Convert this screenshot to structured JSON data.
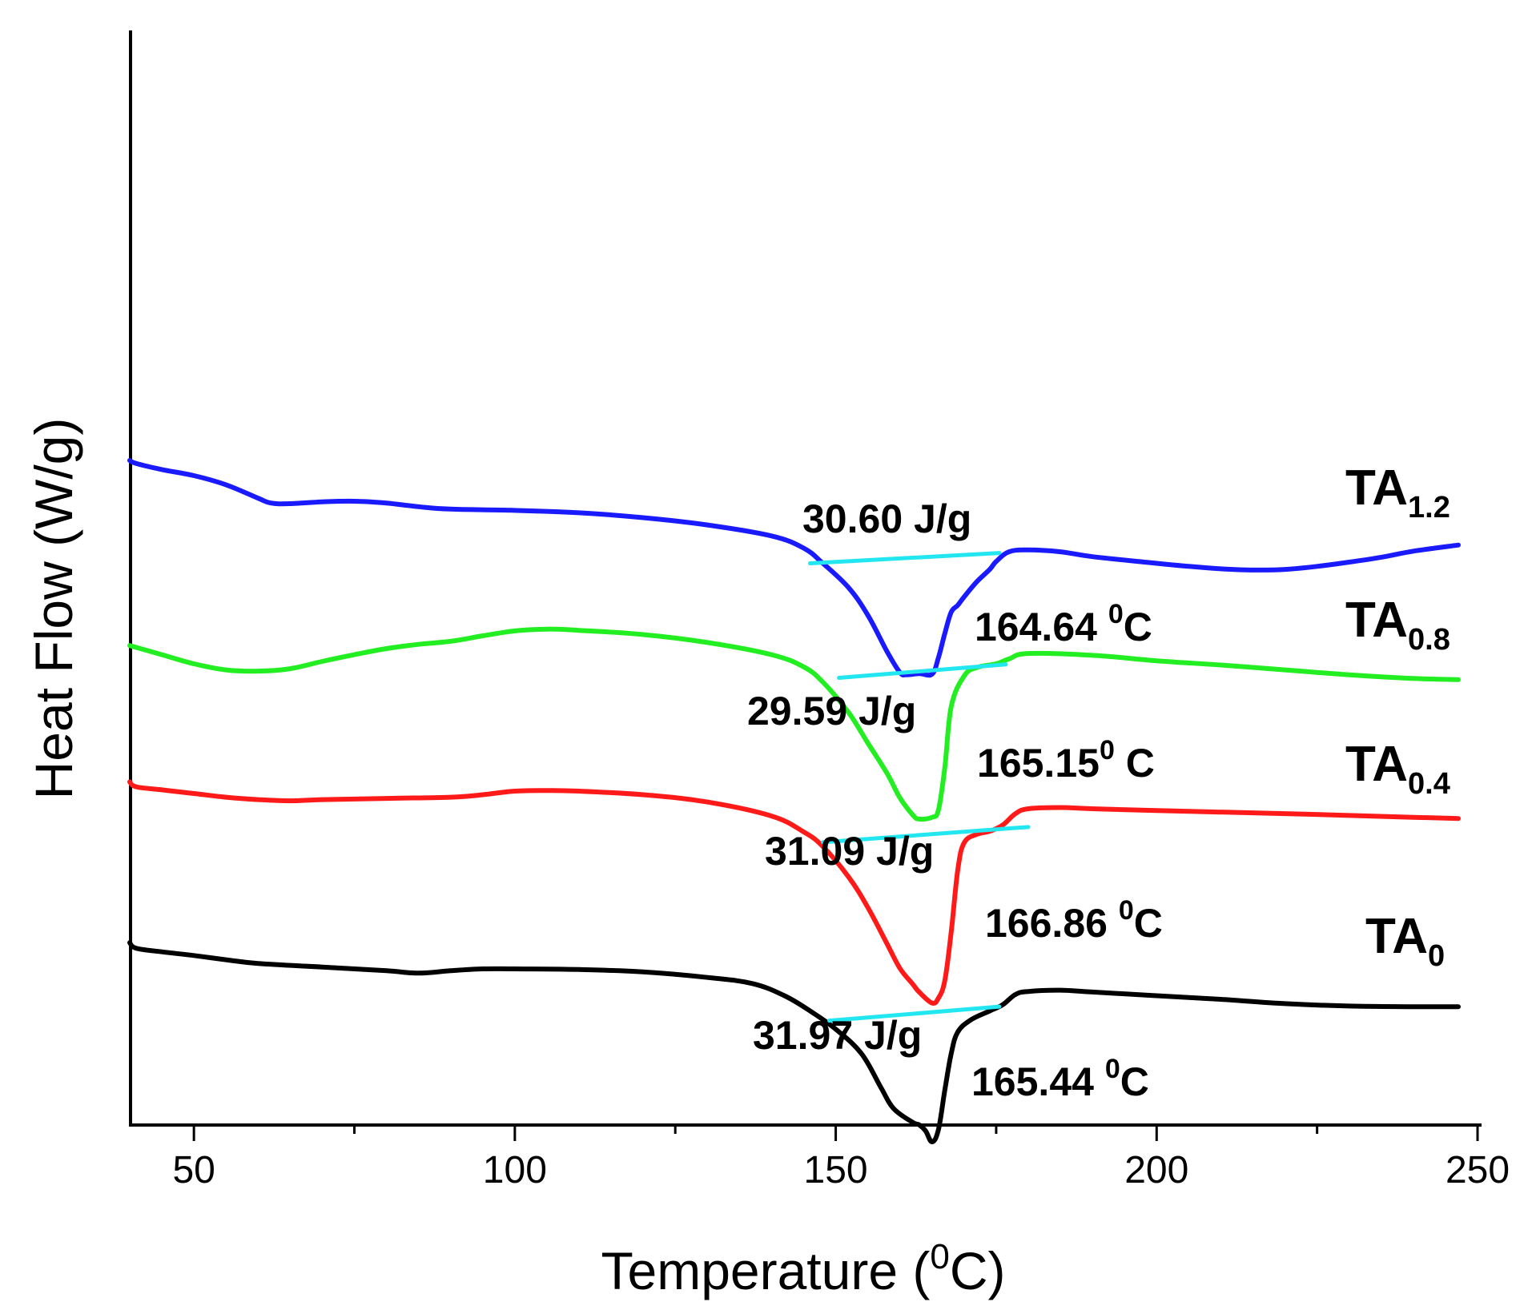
{
  "chart_data": {
    "type": "line",
    "title": "",
    "xlabel": "Temperature (0C)",
    "xlabel_parts": {
      "pre": "Temperature (",
      "sup": "0",
      "post": "C)"
    },
    "ylabel": "Heat Flow (W/g)",
    "xlim": [
      40,
      250
    ],
    "x_ticks": [
      50,
      100,
      150,
      200,
      250
    ],
    "x_tick_labels": [
      "50",
      "100",
      "150",
      "200",
      "250"
    ],
    "x_minor_ticks": [
      75,
      125,
      175,
      225
    ],
    "y_ticks_shown": false,
    "grid": false,
    "series": [
      {
        "name": "TA1.2",
        "label_main": "TA",
        "label_sub": "1.2",
        "color": "#1a1aff",
        "points": [
          [
            40,
            -7.6
          ],
          [
            41,
            -8.1
          ],
          [
            45,
            -9.1
          ],
          [
            50,
            -10.1
          ],
          [
            55,
            -11.6
          ],
          [
            60,
            -13.8
          ],
          [
            62,
            -14.6
          ],
          [
            65,
            -14.7
          ],
          [
            70,
            -14.4
          ],
          [
            75,
            -14.3
          ],
          [
            80,
            -14.6
          ],
          [
            85,
            -15.2
          ],
          [
            90,
            -15.6
          ],
          [
            100,
            -15.8
          ],
          [
            110,
            -16.2
          ],
          [
            120,
            -17.0
          ],
          [
            130,
            -18.2
          ],
          [
            140,
            -20.0
          ],
          [
            145,
            -22.0
          ],
          [
            148,
            -24.5
          ],
          [
            152,
            -28.5
          ],
          [
            155,
            -33.0
          ],
          [
            158,
            -39.0
          ],
          [
            160,
            -42.4
          ],
          [
            161,
            -42.8
          ],
          [
            163,
            -42.6
          ],
          [
            165,
            -42.7
          ],
          [
            166,
            -40.0
          ],
          [
            167,
            -36.0
          ],
          [
            168,
            -32.5
          ],
          [
            169,
            -31.4
          ],
          [
            170,
            -30.0
          ],
          [
            172,
            -27.5
          ],
          [
            174,
            -25.5
          ],
          [
            175,
            -24.2
          ],
          [
            177,
            -22.6
          ],
          [
            180,
            -22.3
          ],
          [
            185,
            -22.6
          ],
          [
            190,
            -23.4
          ],
          [
            200,
            -24.5
          ],
          [
            205,
            -25.0
          ],
          [
            210,
            -25.4
          ],
          [
            215,
            -25.6
          ],
          [
            220,
            -25.5
          ],
          [
            225,
            -25.0
          ],
          [
            230,
            -24.3
          ],
          [
            235,
            -23.5
          ],
          [
            240,
            -22.5
          ],
          [
            247,
            -21.5
          ]
        ]
      },
      {
        "name": "TA0.8",
        "label_main": "TA",
        "label_sub": "0.8",
        "color": "#22ee22",
        "points": [
          [
            40,
            -38.0
          ],
          [
            45,
            -39.5
          ],
          [
            50,
            -41.0
          ],
          [
            55,
            -42.0
          ],
          [
            60,
            -42.2
          ],
          [
            65,
            -41.8
          ],
          [
            70,
            -40.6
          ],
          [
            75,
            -39.5
          ],
          [
            80,
            -38.5
          ],
          [
            85,
            -37.8
          ],
          [
            90,
            -37.3
          ],
          [
            95,
            -36.4
          ],
          [
            100,
            -35.6
          ],
          [
            105,
            -35.3
          ],
          [
            110,
            -35.5
          ],
          [
            120,
            -36.2
          ],
          [
            130,
            -37.5
          ],
          [
            140,
            -39.5
          ],
          [
            145,
            -41.5
          ],
          [
            148,
            -44.0
          ],
          [
            152,
            -49.0
          ],
          [
            155,
            -54.0
          ],
          [
            158,
            -59.0
          ],
          [
            160,
            -63.0
          ],
          [
            162,
            -65.8
          ],
          [
            163,
            -66.5
          ],
          [
            165,
            -66.2
          ],
          [
            166,
            -65.0
          ],
          [
            167,
            -58.0
          ],
          [
            168,
            -48.0
          ],
          [
            170,
            -43.0
          ],
          [
            172,
            -41.6
          ],
          [
            175,
            -41.0
          ],
          [
            177,
            -40.2
          ],
          [
            180,
            -39.3
          ],
          [
            190,
            -39.6
          ],
          [
            200,
            -40.5
          ],
          [
            210,
            -41.2
          ],
          [
            220,
            -42.0
          ],
          [
            230,
            -42.8
          ],
          [
            240,
            -43.4
          ],
          [
            247,
            -43.6
          ]
        ]
      },
      {
        "name": "TA0.4",
        "label_main": "TA",
        "label_sub": "0.4",
        "color": "#ff1a1a",
        "points": [
          [
            40,
            -60.4
          ],
          [
            41,
            -61.2
          ],
          [
            45,
            -61.7
          ],
          [
            50,
            -62.3
          ],
          [
            55,
            -62.9
          ],
          [
            60,
            -63.3
          ],
          [
            65,
            -63.5
          ],
          [
            70,
            -63.3
          ],
          [
            80,
            -63.1
          ],
          [
            90,
            -62.9
          ],
          [
            95,
            -62.5
          ],
          [
            100,
            -61.9
          ],
          [
            105,
            -61.8
          ],
          [
            110,
            -61.9
          ],
          [
            120,
            -62.5
          ],
          [
            130,
            -63.7
          ],
          [
            140,
            -66.0
          ],
          [
            145,
            -68.6
          ],
          [
            148,
            -71.0
          ],
          [
            152,
            -76.0
          ],
          [
            155,
            -81.0
          ],
          [
            158,
            -87.0
          ],
          [
            160,
            -91.0
          ],
          [
            162,
            -93.6
          ],
          [
            163,
            -94.9
          ],
          [
            165,
            -96.7
          ],
          [
            166,
            -95.9
          ],
          [
            167,
            -93.0
          ],
          [
            168,
            -85.0
          ],
          [
            169,
            -75.0
          ],
          [
            170,
            -70.4
          ],
          [
            172,
            -69.0
          ],
          [
            174,
            -68.5
          ],
          [
            176,
            -67.5
          ],
          [
            178,
            -65.6
          ],
          [
            180,
            -64.8
          ],
          [
            185,
            -64.6
          ],
          [
            190,
            -64.8
          ],
          [
            200,
            -65.1
          ],
          [
            220,
            -65.6
          ],
          [
            240,
            -66.2
          ],
          [
            247,
            -66.4
          ]
        ]
      },
      {
        "name": "TA0",
        "label_main": "TA",
        "label_sub": "0",
        "color": "#000000",
        "points": [
          [
            40,
            -86.8
          ],
          [
            41,
            -87.7
          ],
          [
            45,
            -88.3
          ],
          [
            50,
            -88.9
          ],
          [
            55,
            -89.6
          ],
          [
            60,
            -90.2
          ],
          [
            70,
            -90.8
          ],
          [
            80,
            -91.4
          ],
          [
            85,
            -91.8
          ],
          [
            90,
            -91.4
          ],
          [
            95,
            -91.1
          ],
          [
            100,
            -91.1
          ],
          [
            110,
            -91.2
          ],
          [
            120,
            -91.6
          ],
          [
            130,
            -92.5
          ],
          [
            137,
            -93.5
          ],
          [
            142,
            -95.5
          ],
          [
            146,
            -98.0
          ],
          [
            150,
            -101.0
          ],
          [
            154,
            -105.0
          ],
          [
            157,
            -110.5
          ],
          [
            159,
            -114.0
          ],
          [
            162,
            -116.3
          ],
          [
            163,
            -116.7
          ],
          [
            164,
            -117.7
          ],
          [
            165,
            -119.5
          ],
          [
            166,
            -117.5
          ],
          [
            167,
            -111.0
          ],
          [
            168,
            -105.0
          ],
          [
            169,
            -101.5
          ],
          [
            171,
            -99.5
          ],
          [
            174,
            -98.0
          ],
          [
            176,
            -97.0
          ],
          [
            178,
            -95.3
          ],
          [
            180,
            -94.8
          ],
          [
            185,
            -94.6
          ],
          [
            190,
            -94.9
          ],
          [
            200,
            -95.5
          ],
          [
            210,
            -96.1
          ],
          [
            220,
            -96.8
          ],
          [
            230,
            -97.2
          ],
          [
            240,
            -97.3
          ],
          [
            247,
            -97.3
          ]
        ]
      }
    ],
    "baselines": [
      {
        "series": "TA1.2",
        "color": "#22e6f0",
        "from": [
          146,
          -24.5
        ],
        "to": [
          175.5,
          -22.8
        ]
      },
      {
        "series": "TA0.8",
        "color": "#22e6f0",
        "from": [
          150.5,
          -43.3
        ],
        "to": [
          176.5,
          -41.1
        ]
      },
      {
        "series": "TA0.4",
        "color": "#22e6f0",
        "from": [
          148,
          -70.3
        ],
        "to": [
          180,
          -67.8
        ]
      },
      {
        "series": "TA0",
        "color": "#22e6f0",
        "from": [
          149,
          -99.6
        ],
        "to": [
          175.5,
          -97.3
        ]
      }
    ],
    "annotations": [
      {
        "series": "TA1.2",
        "kind": "enthalpy",
        "text": "30.60 J/g"
      },
      {
        "series": "TA1.2",
        "kind": "peak",
        "main": "164.64 ",
        "sup": "0",
        "post": "C"
      },
      {
        "series": "TA0.8",
        "kind": "enthalpy",
        "text": "29.59 J/g"
      },
      {
        "series": "TA0.8",
        "kind": "peak",
        "main": "165.15",
        "sup": "0",
        "post": " C"
      },
      {
        "series": "TA0.4",
        "kind": "enthalpy",
        "text": "31.09 J/g"
      },
      {
        "series": "TA0.4",
        "kind": "peak",
        "main": "166.86 ",
        "sup": "0",
        "post": "C"
      },
      {
        "series": "TA0",
        "kind": "enthalpy",
        "text": "31.97 J/g"
      },
      {
        "series": "TA0",
        "kind": "peak",
        "main": "165.44 ",
        "sup": "0",
        "post": "C"
      }
    ]
  }
}
